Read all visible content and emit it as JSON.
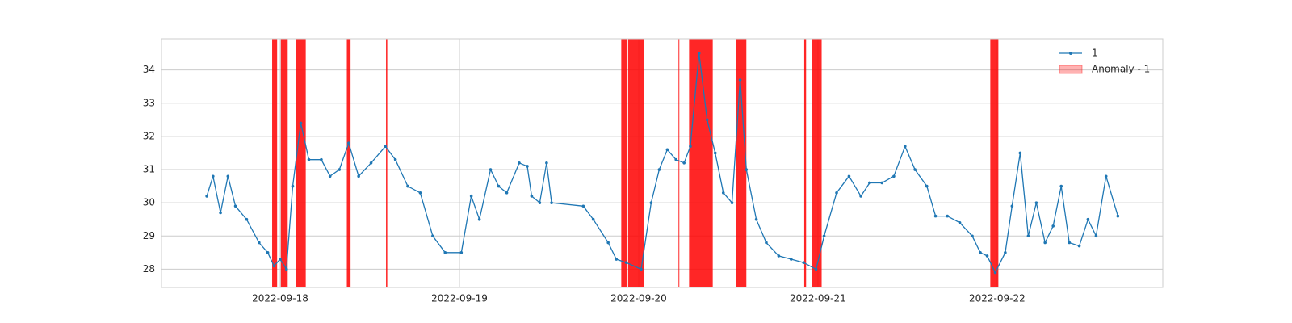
{
  "chart_data": {
    "type": "line",
    "series": [
      {
        "name": "1",
        "color": "#1f77b4",
        "x": [
          "2022-09-17T14:10",
          "2022-09-17T15:00",
          "2022-09-17T16:00",
          "2022-09-17T17:00",
          "2022-09-17T18:00",
          "2022-09-17T19:30",
          "2022-09-17T21:10",
          "2022-09-17T22:20",
          "2022-09-17T23:10",
          "2022-09-18T00:00",
          "2022-09-18T00:50",
          "2022-09-18T01:40",
          "2022-09-18T02:45",
          "2022-09-18T03:50",
          "2022-09-18T05:30",
          "2022-09-18T06:40",
          "2022-09-18T07:55",
          "2022-09-18T09:10",
          "2022-09-18T10:30",
          "2022-09-18T12:10",
          "2022-09-18T14:05",
          "2022-09-18T15:25",
          "2022-09-18T17:05",
          "2022-09-18T18:45",
          "2022-09-18T20:25",
          "2022-09-18T22:05",
          "2022-09-19T00:15",
          "2022-09-19T01:35",
          "2022-09-19T02:40",
          "2022-09-19T04:10",
          "2022-09-19T05:15",
          "2022-09-19T06:20",
          "2022-09-19T08:00",
          "2022-09-19T09:05",
          "2022-09-19T09:40",
          "2022-09-19T10:45",
          "2022-09-19T11:40",
          "2022-09-19T12:20",
          "2022-09-19T16:35",
          "2022-09-19T17:55",
          "2022-09-19T19:55",
          "2022-09-19T21:00",
          "2022-09-19T22:20",
          "2022-09-20T00:20",
          "2022-09-20T01:40",
          "2022-09-20T02:45",
          "2022-09-20T03:50",
          "2022-09-20T05:00",
          "2022-09-20T06:05",
          "2022-09-20T06:55",
          "2022-09-20T08:05",
          "2022-09-20T09:10",
          "2022-09-20T10:15",
          "2022-09-20T11:20",
          "2022-09-20T12:30",
          "2022-09-20T13:35",
          "2022-09-20T14:25",
          "2022-09-20T15:45",
          "2022-09-20T17:05",
          "2022-09-20T18:45",
          "2022-09-20T20:25",
          "2022-09-20T22:05",
          "2022-09-20T23:45",
          "2022-09-21T00:50",
          "2022-09-21T02:30",
          "2022-09-21T04:10",
          "2022-09-21T05:45",
          "2022-09-21T06:55",
          "2022-09-21T08:35",
          "2022-09-21T10:10",
          "2022-09-21T11:40",
          "2022-09-21T13:00",
          "2022-09-21T14:35",
          "2022-09-21T15:45",
          "2022-09-21T17:20",
          "2022-09-21T19:00",
          "2022-09-21T20:40",
          "2022-09-21T21:45",
          "2022-09-21T22:40",
          "2022-09-21T23:45",
          "2022-09-22T01:05",
          "2022-09-22T02:00",
          "2022-09-22T03:05",
          "2022-09-22T04:10",
          "2022-09-22T05:15",
          "2022-09-22T06:25",
          "2022-09-22T07:30",
          "2022-09-22T08:35",
          "2022-09-22T09:40",
          "2022-09-22T11:00",
          "2022-09-22T12:10",
          "2022-09-22T13:15",
          "2022-09-22T14:35",
          "2022-09-22T16:10"
        ],
        "values": [
          30.2,
          30.8,
          29.7,
          30.8,
          29.9,
          29.5,
          28.8,
          28.5,
          28.1,
          28.3,
          28.0,
          30.5,
          32.4,
          31.3,
          31.3,
          30.8,
          31.0,
          31.8,
          30.8,
          31.2,
          31.7,
          31.3,
          30.5,
          30.3,
          29.0,
          28.5,
          28.5,
          30.2,
          29.5,
          31.0,
          30.5,
          30.3,
          31.2,
          31.1,
          30.2,
          30.0,
          31.2,
          30.0,
          29.9,
          29.5,
          28.8,
          28.3,
          28.2,
          28.0,
          30.0,
          31.0,
          31.6,
          31.3,
          31.2,
          31.7,
          34.5,
          32.5,
          31.5,
          30.3,
          30.0,
          33.7,
          31.0,
          29.5,
          28.8,
          28.4,
          28.3,
          28.2,
          28.0,
          29.0,
          30.3,
          30.8,
          30.2,
          30.6,
          30.6,
          30.8,
          31.7,
          31.0,
          30.5,
          29.6,
          29.6,
          29.4,
          29.0,
          28.5,
          28.4,
          27.9,
          28.5,
          29.9,
          31.5,
          29.0,
          30.0,
          28.8,
          29.3,
          30.5,
          28.8,
          28.7,
          29.5,
          29.0,
          30.8,
          29.6
        ]
      }
    ],
    "anomalies": {
      "name": "Anomaly - 1",
      "color": "#ff0000",
      "spans": [
        [
          "2022-09-17T22:55",
          "2022-09-17T23:35"
        ],
        [
          "2022-09-18T00:05",
          "2022-09-18T01:00"
        ],
        [
          "2022-09-18T02:05",
          "2022-09-18T03:25"
        ],
        [
          "2022-09-18T08:55",
          "2022-09-18T09:25"
        ],
        [
          "2022-09-18T14:10",
          "2022-09-18T14:20"
        ],
        [
          "2022-09-19T21:40",
          "2022-09-19T22:25"
        ],
        [
          "2022-09-19T22:35",
          "2022-09-20T00:40"
        ],
        [
          "2022-09-20T05:20",
          "2022-09-20T05:25"
        ],
        [
          "2022-09-20T06:45",
          "2022-09-20T09:55"
        ],
        [
          "2022-09-20T13:00",
          "2022-09-20T14:25"
        ],
        [
          "2022-09-20T22:10",
          "2022-09-20T22:25"
        ],
        [
          "2022-09-20T23:10",
          "2022-09-21T00:30"
        ],
        [
          "2022-09-21T23:05",
          "2022-09-22T00:10"
        ]
      ]
    },
    "xlim": [
      "2022-09-17T08:06",
      "2022-09-22T22:11"
    ],
    "xticks": [
      "2022-09-18",
      "2022-09-19",
      "2022-09-20",
      "2022-09-21",
      "2022-09-22"
    ],
    "ylim": [
      27.45,
      34.94
    ],
    "yticks": [
      28,
      29,
      30,
      31,
      32,
      33,
      34
    ],
    "grid": true,
    "legend": "upper right"
  }
}
